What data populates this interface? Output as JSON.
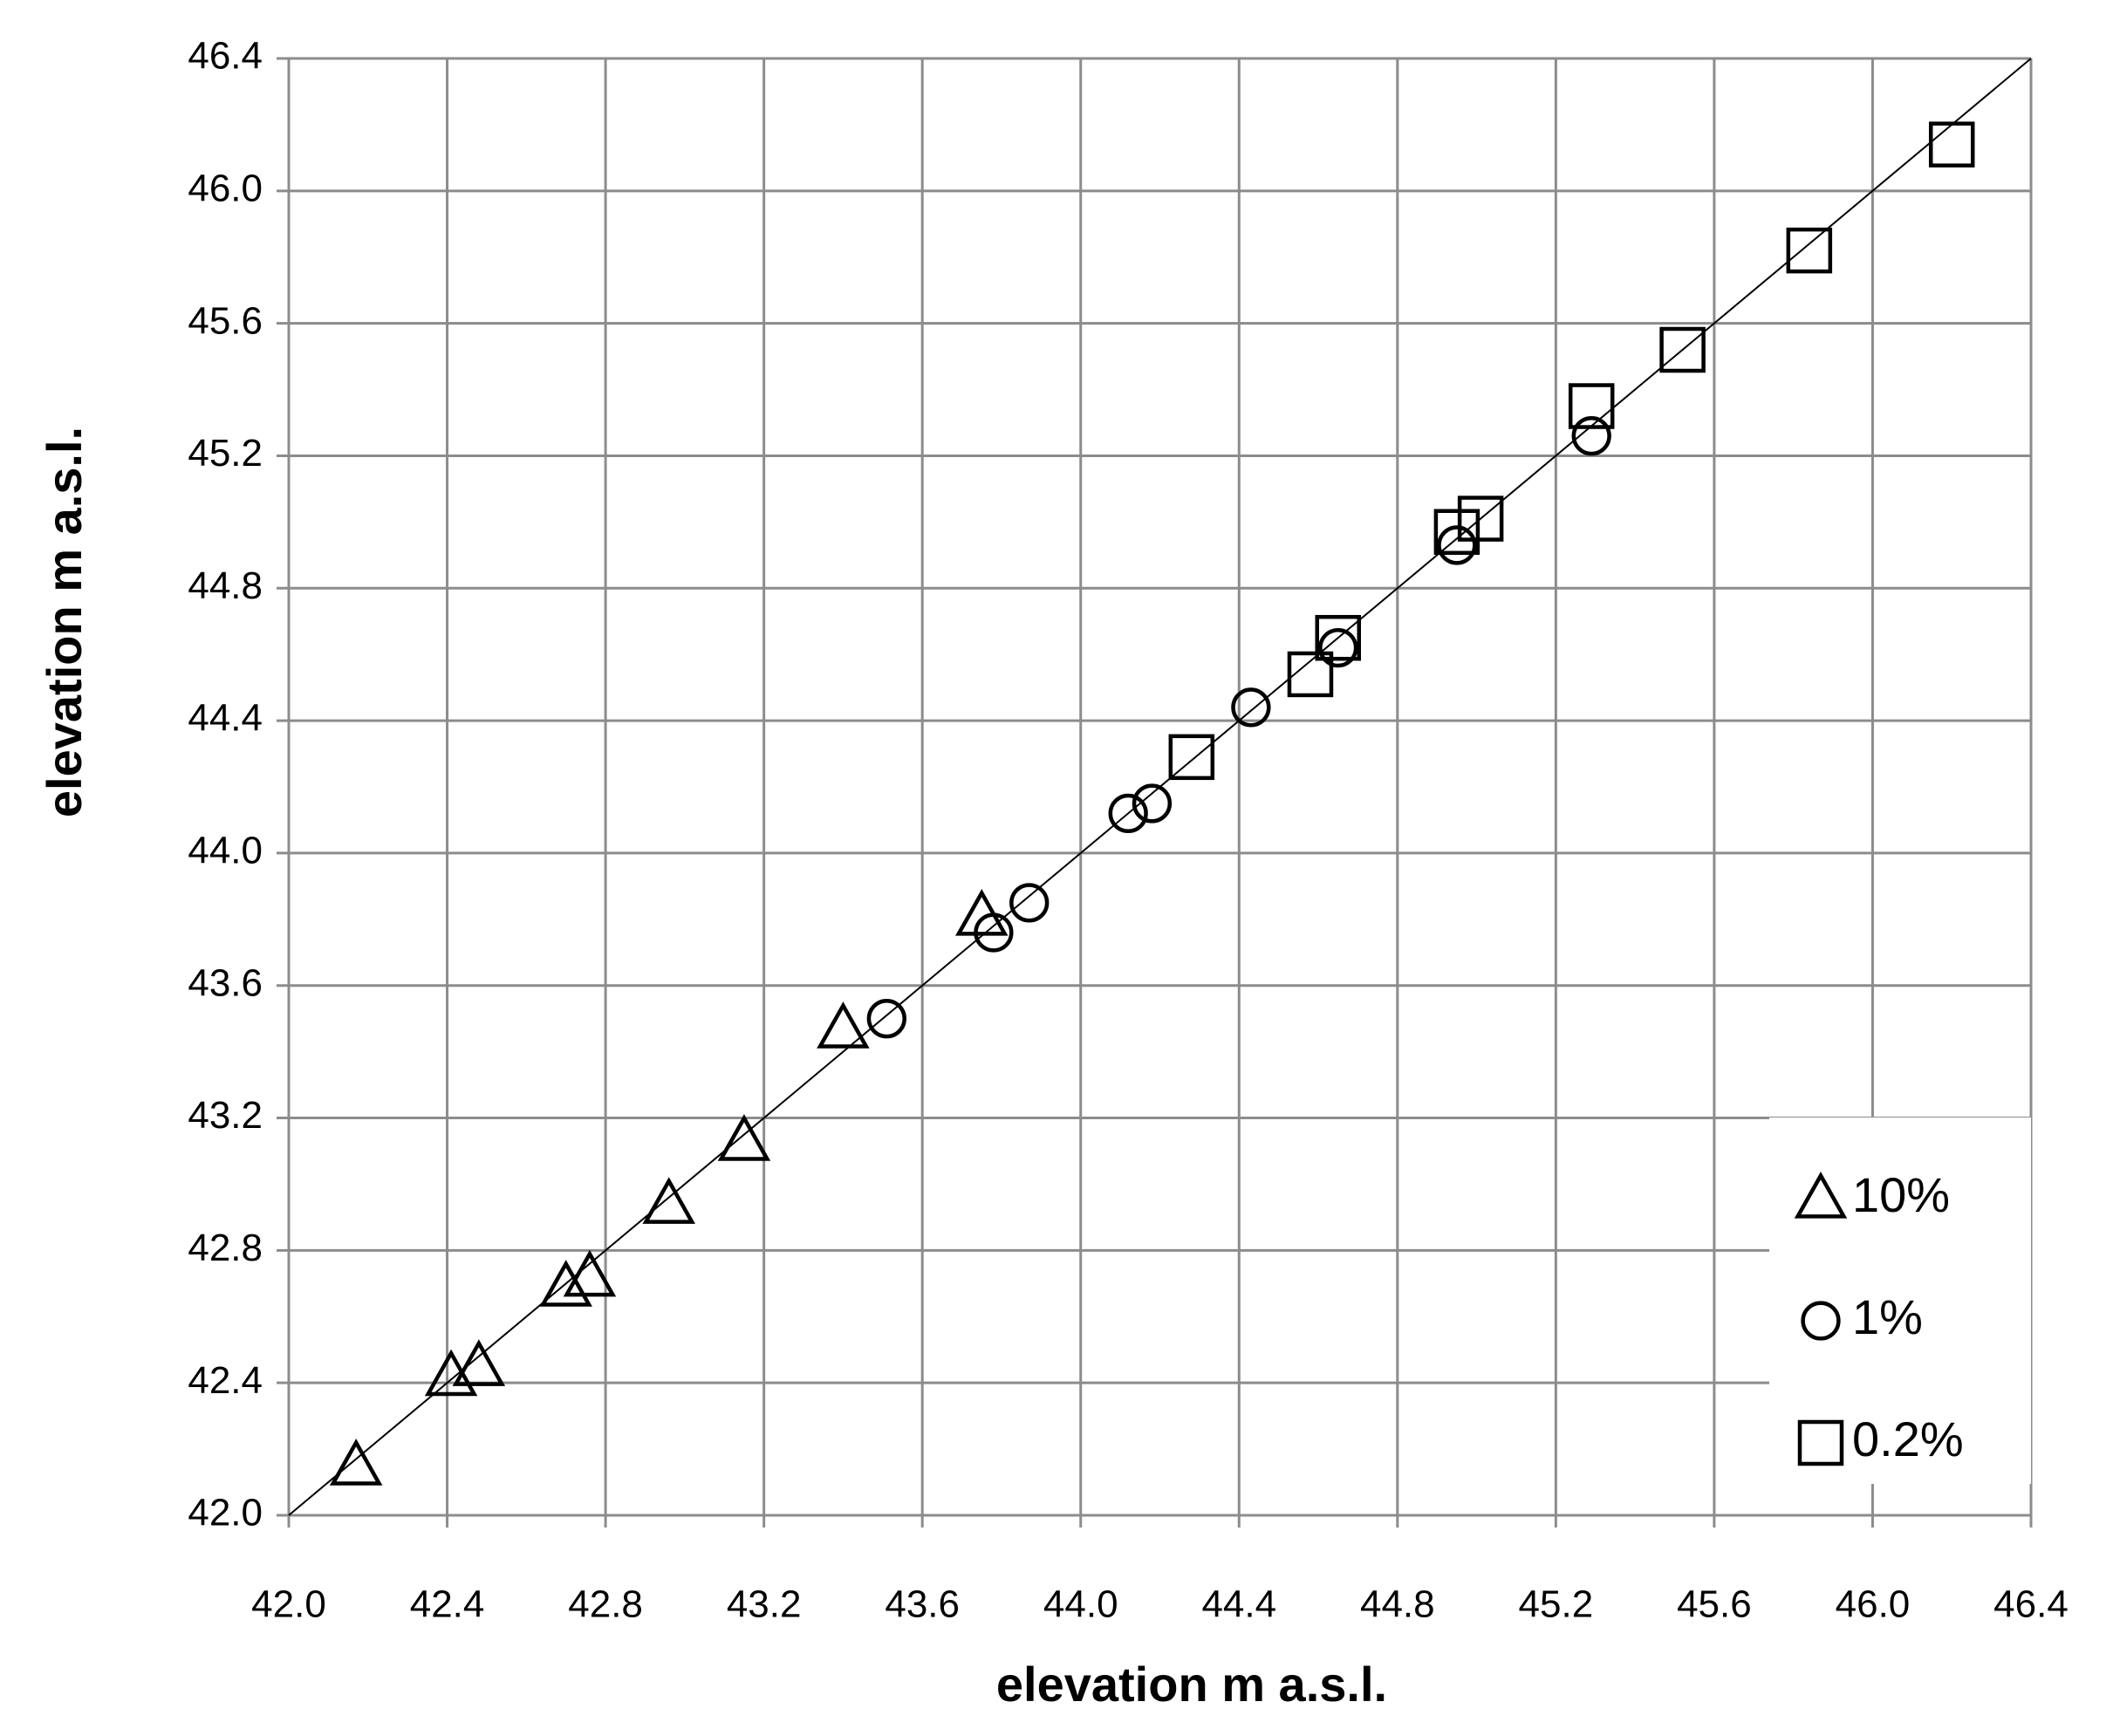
{
  "chart_data": {
    "type": "scatter",
    "x_label": "elevation m a.s.l.",
    "y_label": "elevation m a.s.l.",
    "xlim": [
      42.0,
      46.4
    ],
    "ylim": [
      42.0,
      46.4
    ],
    "xticks": [
      {
        "value": 42,
        "label": "42.0"
      },
      42.4,
      42.8,
      43.2,
      43.6,
      {
        "value": 44,
        "label": "44.0"
      },
      44.4,
      44.8,
      45.2,
      45.6,
      {
        "value": 46,
        "label": "46.0"
      },
      46.4
    ],
    "yticks": [
      {
        "value": 42,
        "label": "42.0"
      },
      42.4,
      42.8,
      43.2,
      43.6,
      {
        "value": 44,
        "label": "44.0"
      },
      44.4,
      44.8,
      45.2,
      45.6,
      {
        "value": 46,
        "label": "46.0"
      },
      46.4
    ],
    "grid": true,
    "legend": "lower right",
    "series": [
      {
        "name": "10%",
        "color": "#000000",
        "marker": "triangle",
        "x": [
          42.17,
          42.41,
          42.48,
          42.7,
          42.76,
          42.96,
          43.15,
          43.4,
          43.75
        ],
        "values": [
          42.15,
          42.42,
          42.45,
          42.69,
          42.72,
          42.94,
          43.13,
          43.47,
          43.81
        ]
      },
      {
        "name": "1%",
        "color": "#000000",
        "marker": "circle",
        "x": [
          43.51,
          43.78,
          43.87,
          44.12,
          44.18,
          44.43,
          44.65,
          44.95,
          45.29
        ],
        "values": [
          43.5,
          43.76,
          43.85,
          44.12,
          44.15,
          44.44,
          44.62,
          44.93,
          45.26
        ]
      },
      {
        "name": "0.2%",
        "color": "#000000",
        "marker": "square",
        "x": [
          44.28,
          44.58,
          44.65,
          44.95,
          45.01,
          45.29,
          45.52,
          45.84,
          46.2
        ],
        "values": [
          44.29,
          44.54,
          44.65,
          44.97,
          45.01,
          45.35,
          45.52,
          45.82,
          46.14
        ]
      }
    ]
  }
}
